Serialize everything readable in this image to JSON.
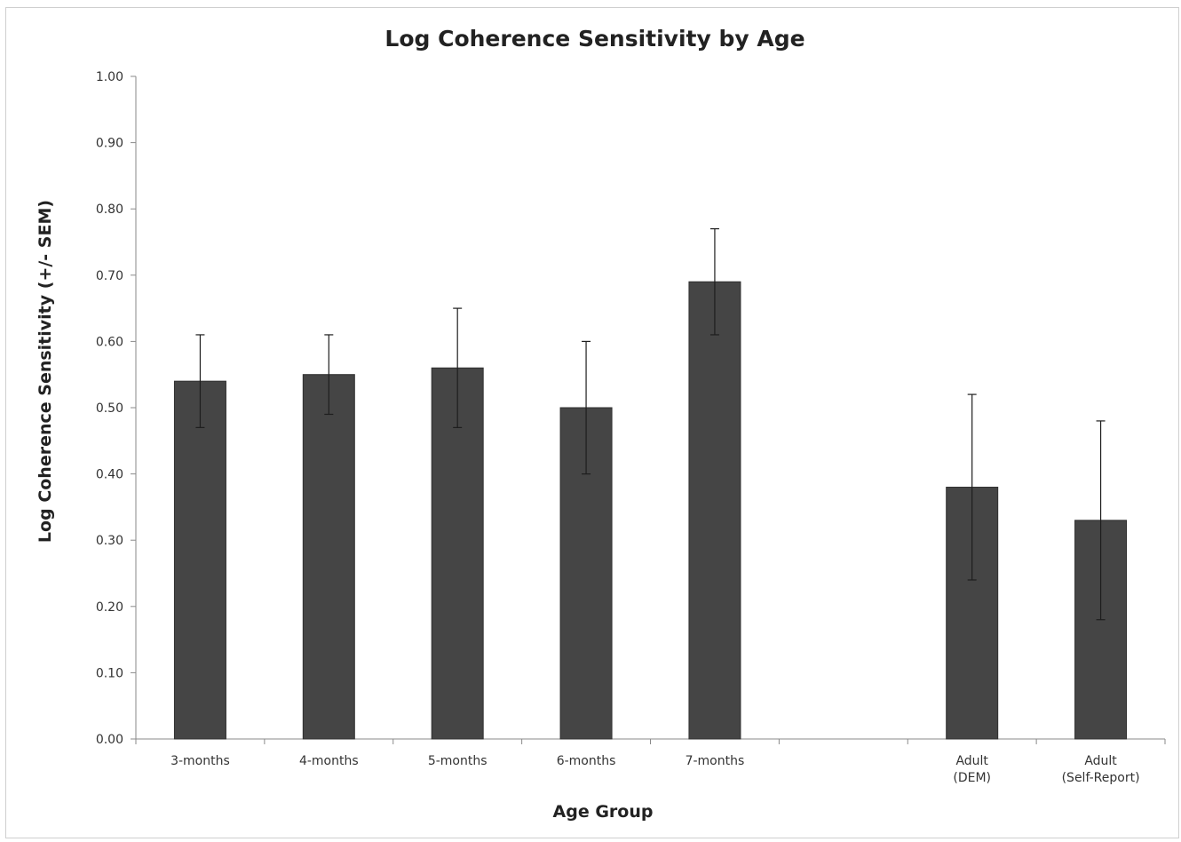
{
  "chart_data": {
    "type": "bar",
    "title": "Log Coherence Sensitivity by Age",
    "xlabel": "Age Group",
    "ylabel": "Log Coherence Sensitivity (+/- SEM)",
    "ylim": [
      0,
      1
    ],
    "yticks": [
      "0.00",
      "0.10",
      "0.20",
      "0.30",
      "0.40",
      "0.50",
      "0.60",
      "0.70",
      "0.80",
      "0.90",
      "1.00"
    ],
    "grid": false,
    "legend": "none",
    "bar_color": "#454545",
    "categories": [
      {
        "lines": [
          "3-months"
        ]
      },
      {
        "lines": [
          "4-months"
        ]
      },
      {
        "lines": [
          "5-months"
        ]
      },
      {
        "lines": [
          "6-months"
        ]
      },
      {
        "lines": [
          "7-months"
        ]
      },
      {
        "lines": []
      },
      {
        "lines": [
          "Adult",
          "(DEM)"
        ]
      },
      {
        "lines": [
          "Adult",
          "(Self-Report)"
        ]
      }
    ],
    "values": [
      0.54,
      0.55,
      0.56,
      0.5,
      0.69,
      null,
      0.38,
      0.33
    ],
    "error_low": [
      0.47,
      0.49,
      0.47,
      0.4,
      0.61,
      null,
      0.24,
      0.18
    ],
    "error_high": [
      0.61,
      0.61,
      0.65,
      0.6,
      0.77,
      null,
      0.52,
      0.48
    ]
  }
}
